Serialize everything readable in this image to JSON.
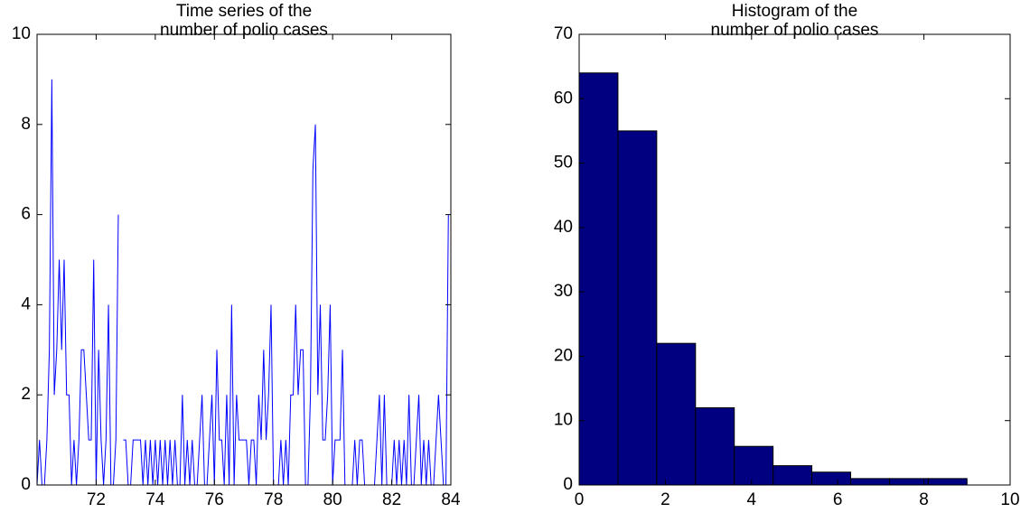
{
  "chart_data": [
    {
      "type": "line",
      "title": [
        "Time series of the",
        "number of polio cases"
      ],
      "x": [
        70,
        70.083,
        70.167,
        70.25,
        70.333,
        70.417,
        70.5,
        70.583,
        70.667,
        70.75,
        70.833,
        70.917,
        71,
        71.083,
        71.167,
        71.25,
        71.333,
        71.417,
        71.5,
        71.583,
        71.667,
        71.75,
        71.833,
        71.917,
        72,
        72.083,
        72.167,
        72.25,
        72.333,
        72.417,
        72.5,
        72.583,
        72.667,
        72.75,
        72.833,
        72.917,
        73,
        73.083,
        73.167,
        73.25,
        73.333,
        73.417,
        73.5,
        73.583,
        73.667,
        73.75,
        73.833,
        73.917,
        74,
        74.083,
        74.167,
        74.25,
        74.333,
        74.417,
        74.5,
        74.583,
        74.667,
        74.75,
        74.833,
        74.917,
        75,
        75.083,
        75.167,
        75.25,
        75.333,
        75.417,
        75.5,
        75.583,
        75.667,
        75.75,
        75.833,
        75.917,
        76,
        76.083,
        76.167,
        76.25,
        76.333,
        76.417,
        76.5,
        76.583,
        76.667,
        76.75,
        76.833,
        76.917,
        77,
        77.083,
        77.167,
        77.25,
        77.333,
        77.417,
        77.5,
        77.583,
        77.667,
        77.75,
        77.833,
        77.917,
        78,
        78.083,
        78.167,
        78.25,
        78.333,
        78.417,
        78.5,
        78.583,
        78.667,
        78.75,
        78.833,
        78.917,
        79,
        79.083,
        79.167,
        79.25,
        79.333,
        79.417,
        79.5,
        79.583,
        79.667,
        79.75,
        79.833,
        79.917,
        80,
        80.083,
        80.167,
        80.25,
        80.333,
        80.417,
        80.5,
        80.583,
        80.667,
        80.75,
        80.833,
        80.917,
        81,
        81.083,
        81.167,
        81.25,
        81.333,
        81.417,
        81.5,
        81.583,
        81.667,
        81.75,
        81.833,
        81.917,
        82,
        82.083,
        82.167,
        82.25,
        82.333,
        82.417,
        82.5,
        82.583,
        82.667,
        82.75,
        82.833,
        82.917,
        83,
        83.083,
        83.167,
        83.25,
        83.333,
        83.417,
        83.5,
        83.583,
        83.667,
        83.75,
        83.833,
        83.917
      ],
      "values": [
        0,
        1,
        0,
        0,
        1,
        3,
        9,
        2,
        3,
        5,
        3,
        5,
        2,
        2,
        0,
        1,
        0,
        1,
        3,
        3,
        2,
        1,
        1,
        5,
        0,
        3,
        1,
        0,
        1,
        4,
        0,
        0,
        1,
        6,
        null,
        1,
        1,
        0,
        0,
        1,
        1,
        1,
        1,
        0,
        1,
        0,
        1,
        0,
        1,
        0,
        1,
        0,
        1,
        0,
        1,
        0,
        1,
        0,
        0,
        2,
        0,
        1,
        0,
        1,
        0,
        0,
        1,
        2,
        0,
        0,
        1,
        2,
        0,
        3,
        1,
        1,
        0,
        2,
        0,
        4,
        0,
        2,
        1,
        1,
        1,
        1,
        0,
        1,
        1,
        0,
        2,
        1,
        3,
        1,
        2,
        4,
        0,
        0,
        0,
        1,
        0,
        1,
        0,
        2,
        2,
        4,
        2,
        3,
        3,
        0,
        0,
        2,
        7,
        8,
        2,
        4,
        1,
        1,
        2,
        4,
        0,
        1,
        1,
        1,
        3,
        0,
        0,
        0,
        0,
        1,
        0,
        1,
        1,
        0,
        0,
        0,
        0,
        0,
        1,
        2,
        0,
        2,
        0,
        0,
        0,
        1,
        0,
        1,
        0,
        1,
        0,
        2,
        0,
        0,
        1,
        2,
        0,
        1,
        0,
        1,
        0,
        0,
        1,
        2,
        1,
        0,
        0,
        6
      ],
      "color": "#0000ff",
      "xlim": [
        70,
        84
      ],
      "xticks": [
        72,
        74,
        76,
        78,
        80,
        82,
        84
      ],
      "ylim": [
        0,
        10
      ],
      "yticks": [
        0,
        2,
        4,
        6,
        8,
        10
      ]
    },
    {
      "type": "histogram",
      "title": [
        "Histogram of the",
        "number of polio cases"
      ],
      "bins": [
        0,
        0.9,
        1.8,
        2.7,
        3.6,
        4.5,
        5.4,
        6.3,
        7.2,
        8.1,
        9
      ],
      "values": [
        64,
        55,
        22,
        12,
        6,
        3,
        2,
        1,
        1,
        1
      ],
      "color": "#000080",
      "xlim": [
        0,
        10
      ],
      "xticks": [
        0,
        2,
        4,
        6,
        8,
        10
      ],
      "ylim": [
        0,
        70
      ],
      "yticks": [
        0,
        10,
        20,
        30,
        40,
        50,
        60,
        70
      ]
    }
  ]
}
